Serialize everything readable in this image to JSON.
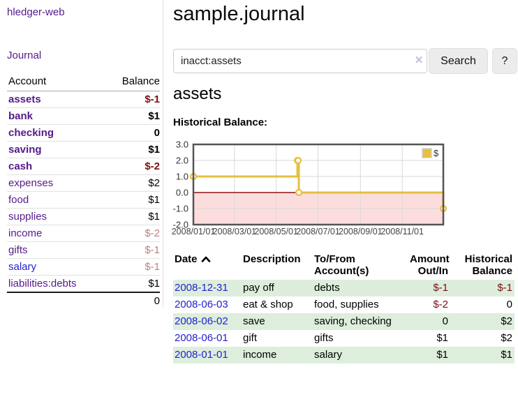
{
  "brand": "hledger-web",
  "sidebar": {
    "journal_link": "Journal",
    "accounts_header": {
      "account": "Account",
      "balance": "Balance"
    },
    "accounts": [
      {
        "name": "assets",
        "balance": "$-1",
        "depth": 1,
        "current": true,
        "neg": "strong"
      },
      {
        "name": "bank",
        "balance": "$1",
        "depth": 2,
        "current": true,
        "neg": ""
      },
      {
        "name": "checking",
        "balance": "0",
        "depth": 3,
        "current": true,
        "neg": ""
      },
      {
        "name": "saving",
        "balance": "$1",
        "depth": 3,
        "current": true,
        "neg": ""
      },
      {
        "name": "cash",
        "balance": "$-2",
        "depth": 2,
        "current": true,
        "neg": "strong"
      },
      {
        "name": "expenses",
        "balance": "$2",
        "depth": 1,
        "current": false,
        "neg": ""
      },
      {
        "name": "food",
        "balance": "$1",
        "depth": 2,
        "current": false,
        "neg": ""
      },
      {
        "name": "supplies",
        "balance": "$1",
        "depth": 2,
        "current": false,
        "neg": ""
      },
      {
        "name": "income",
        "balance": "$-2",
        "depth": 1,
        "current": false,
        "neg": "soft"
      },
      {
        "name": "gifts",
        "balance": "$-1",
        "depth": 2,
        "current": false,
        "neg": "soft"
      },
      {
        "name": "salary",
        "balance": "$-1",
        "depth": 2,
        "current": false,
        "neg": "soft",
        "link_style": "blue"
      },
      {
        "name": "liabilities:debts",
        "balance": "$1",
        "depth": 1,
        "current": false,
        "neg": ""
      }
    ],
    "total": "0"
  },
  "main": {
    "title": "sample.journal",
    "search": {
      "value": "inacct:assets",
      "clear_label": "×",
      "search_button": "Search",
      "help_button": "?"
    },
    "account_heading": "assets",
    "section_label": "Historical Balance:"
  },
  "chart_data": {
    "type": "line",
    "step": true,
    "title": "Historical Balance",
    "series": [
      {
        "name": "$",
        "color": "#e6bf3f",
        "points": [
          [
            "2008-01-01",
            1
          ],
          [
            "2008-06-01",
            2
          ],
          [
            "2008-06-02",
            2
          ],
          [
            "2008-06-03",
            0
          ],
          [
            "2008-12-31",
            -1
          ]
        ]
      }
    ],
    "x_range": [
      "2008-01-01",
      "2008-12-31"
    ],
    "ylim": [
      -2,
      3
    ],
    "y_ticks": [
      "3.0",
      "2.0",
      "1.0",
      "0.0",
      "-1.0",
      "-2.0"
    ],
    "x_ticks": [
      "2008/01/01",
      "2008/03/01",
      "2008/05/01",
      "2008/07/01",
      "2008/09/01",
      "2008/11/01"
    ],
    "legend_label": "$",
    "legend_position": "top-right",
    "grid": true,
    "grid_color": "#d9d9d9",
    "border_color": "#545454",
    "zero_line_color": "#8f1012",
    "negative_region_color": "#fcdddd",
    "point_fill": "#ffffff"
  },
  "register": {
    "headers": {
      "date": "Date",
      "description": "Description",
      "accounts": "To/From Account(s)",
      "amount": "Amount Out/In",
      "balance": "Historical Balance"
    },
    "rows": [
      {
        "date": "2008-12-31",
        "description": "pay off",
        "accounts": "debts",
        "amount": "$-1",
        "balance": "$-1"
      },
      {
        "date": "2008-06-03",
        "description": "eat & shop",
        "accounts": "food, supplies",
        "amount": "$-2",
        "balance": "0"
      },
      {
        "date": "2008-06-02",
        "description": "save",
        "accounts": "saving, checking",
        "amount": "0",
        "balance": "$2"
      },
      {
        "date": "2008-06-01",
        "description": "gift",
        "accounts": "gifts",
        "amount": "$1",
        "balance": "$2"
      },
      {
        "date": "2008-01-01",
        "description": "income",
        "accounts": "salary",
        "amount": "$1",
        "balance": "$1"
      }
    ]
  }
}
